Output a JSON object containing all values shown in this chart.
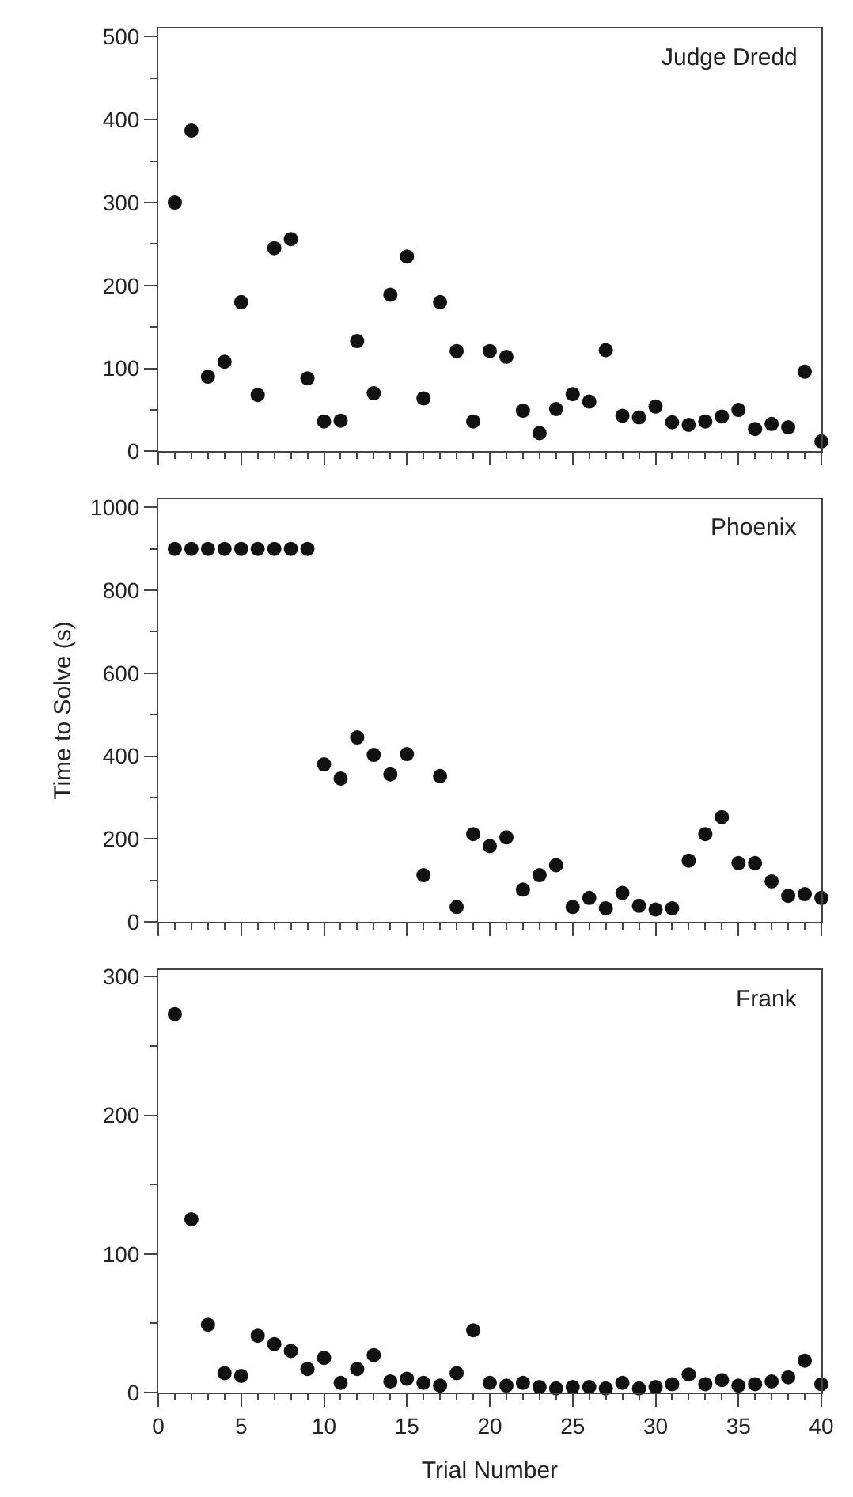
{
  "chart_data": [
    {
      "type": "scatter",
      "x": [
        1,
        2,
        3,
        4,
        5,
        6,
        7,
        8,
        9,
        10,
        11,
        12,
        13,
        14,
        15,
        16,
        17,
        18,
        19,
        20,
        21,
        22,
        23,
        24,
        25,
        26,
        27,
        28,
        29,
        30,
        31,
        32,
        33,
        34,
        35,
        36,
        37,
        38,
        39,
        40
      ],
      "xlim": [
        0,
        40
      ],
      "xticks": [
        0,
        5,
        10,
        15,
        20,
        25,
        30,
        35,
        40
      ],
      "ylim": [
        0,
        510
      ],
      "yticks": [
        0,
        100,
        200,
        300,
        400,
        500
      ],
      "tick_labels": "y",
      "marker": "circle",
      "series": [
        {
          "name": "Judge Dredd",
          "color": "#111111",
          "values": [
            300,
            387,
            90,
            108,
            180,
            68,
            245,
            256,
            88,
            36,
            37,
            133,
            70,
            189,
            235,
            64,
            180,
            121,
            36,
            121,
            114,
            49,
            22,
            51,
            69,
            60,
            122,
            43,
            41,
            54,
            35,
            32,
            36,
            42,
            50,
            27,
            33,
            29,
            96,
            12
          ]
        }
      ]
    },
    {
      "type": "scatter",
      "ylabel": "Time to Solve (s)",
      "x": [
        1,
        2,
        3,
        4,
        5,
        6,
        7,
        8,
        9,
        10,
        11,
        12,
        13,
        14,
        15,
        16,
        17,
        18,
        19,
        20,
        21,
        22,
        23,
        24,
        25,
        26,
        27,
        28,
        29,
        30,
        31,
        32,
        33,
        34,
        35,
        36,
        37,
        38,
        39,
        40
      ],
      "xlim": [
        0,
        40
      ],
      "xticks": [
        0,
        5,
        10,
        15,
        20,
        25,
        30,
        35,
        40
      ],
      "ylim": [
        0,
        1020
      ],
      "yticks": [
        0,
        200,
        400,
        600,
        800,
        1000
      ],
      "tick_labels": "y",
      "marker": "circle",
      "series": [
        {
          "name": "Phoenix",
          "color": "#111111",
          "values": [
            900,
            900,
            900,
            900,
            900,
            900,
            900,
            900,
            900,
            380,
            346,
            445,
            403,
            356,
            405,
            113,
            352,
            36,
            212,
            183,
            204,
            78,
            113,
            137,
            36,
            58,
            33,
            70,
            39,
            30,
            33,
            148,
            212,
            253,
            142,
            142,
            98,
            63,
            67,
            58
          ]
        }
      ]
    },
    {
      "type": "scatter",
      "xlabel": "Trial Number",
      "x": [
        1,
        2,
        3,
        4,
        5,
        6,
        7,
        8,
        9,
        10,
        11,
        12,
        13,
        14,
        15,
        16,
        17,
        18,
        19,
        20,
        21,
        22,
        23,
        24,
        25,
        26,
        27,
        28,
        29,
        30,
        31,
        32,
        33,
        34,
        35,
        36,
        37,
        38,
        39,
        40
      ],
      "xlim": [
        0,
        40
      ],
      "xticks": [
        0,
        5,
        10,
        15,
        20,
        25,
        30,
        35,
        40
      ],
      "ylim": [
        0,
        305
      ],
      "yticks": [
        0,
        100,
        200,
        300
      ],
      "marker": "circle",
      "series": [
        {
          "name": "Frank",
          "color": "#111111",
          "values": [
            273,
            125,
            49,
            14,
            12,
            41,
            35,
            30,
            17,
            25,
            7,
            17,
            27,
            8,
            10,
            7,
            5,
            14,
            45,
            7,
            5,
            7,
            4,
            3,
            4,
            4,
            3,
            7,
            3,
            4,
            6,
            13,
            6,
            9,
            5,
            6,
            8,
            11,
            23,
            6
          ]
        }
      ]
    }
  ]
}
